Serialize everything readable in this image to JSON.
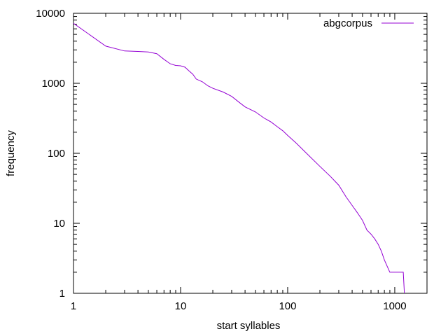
{
  "chart_data": {
    "type": "line",
    "title": "",
    "xlabel": "start syllables",
    "ylabel": "frequency",
    "x_scale": "log",
    "y_scale": "log",
    "xlim": [
      1,
      2000
    ],
    "ylim": [
      1,
      10000
    ],
    "x_ticks": [
      {
        "value": 1,
        "label": "1"
      },
      {
        "value": 10,
        "label": "10"
      },
      {
        "value": 100,
        "label": "100"
      },
      {
        "value": 1000,
        "label": "1000"
      }
    ],
    "y_ticks": [
      {
        "value": 1,
        "label": "1"
      },
      {
        "value": 10,
        "label": "10"
      },
      {
        "value": 100,
        "label": "100"
      },
      {
        "value": 1000,
        "label": "1000"
      },
      {
        "value": 10000,
        "label": "10000"
      }
    ],
    "grid": false,
    "legend_position": "top-right",
    "series": [
      {
        "name": "abgcorpus",
        "color": "#9400d3",
        "x": [
          1,
          2,
          3,
          4,
          5,
          6,
          7,
          8,
          9,
          10,
          11,
          12,
          13,
          14,
          16,
          18,
          20,
          25,
          30,
          35,
          40,
          50,
          60,
          70,
          80,
          90,
          100,
          120,
          150,
          200,
          250,
          300,
          350,
          400,
          450,
          500,
          550,
          600,
          650,
          700,
          750,
          800,
          900,
          1000,
          1100,
          1200,
          1230
        ],
        "y": [
          7200,
          3400,
          2900,
          2850,
          2800,
          2650,
          2200,
          1900,
          1800,
          1780,
          1700,
          1500,
          1350,
          1150,
          1050,
          920,
          850,
          750,
          650,
          540,
          460,
          390,
          320,
          280,
          240,
          210,
          180,
          140,
          100,
          65,
          47,
          35,
          24,
          18,
          14,
          11,
          8,
          7,
          6,
          5,
          4,
          3,
          2,
          2,
          2,
          2,
          1
        ]
      }
    ]
  }
}
